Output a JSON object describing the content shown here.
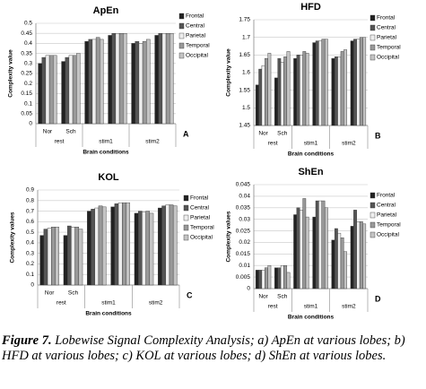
{
  "chart_data": [
    {
      "type": "bar",
      "panel": "A",
      "title": "ApEn",
      "y_label": "Complexity value",
      "x_label": "Brain conditions",
      "categories": [
        "Nor",
        "Sch",
        null,
        null,
        null,
        null
      ],
      "groups": [
        "rest",
        "stim1",
        "stim2"
      ],
      "ylim": [
        0,
        0.5
      ],
      "yticks": [
        0,
        0.05,
        0.1,
        0.15,
        0.2,
        0.25,
        0.3,
        0.35,
        0.4,
        0.45,
        0.5
      ],
      "grid": true,
      "series": [
        {
          "name": "Frontal",
          "color": "#222222",
          "values": [
            0.3,
            0.31,
            0.41,
            0.44,
            0.4,
            0.44
          ]
        },
        {
          "name": "Central",
          "color": "#555555",
          "values": [
            0.33,
            0.33,
            0.42,
            0.45,
            0.41,
            0.45
          ]
        },
        {
          "name": "Parietal",
          "color": "#eeeeee",
          "values": [
            0.34,
            0.34,
            0.42,
            0.45,
            0.4,
            0.45
          ]
        },
        {
          "name": "Temporal",
          "color": "#999999",
          "values": [
            0.34,
            0.34,
            0.43,
            0.45,
            0.41,
            0.45
          ]
        },
        {
          "name": "Occipital",
          "color": "#c4c4c4",
          "values": [
            0.34,
            0.35,
            0.42,
            0.45,
            0.42,
            0.45
          ]
        }
      ]
    },
    {
      "type": "bar",
      "panel": "B",
      "title": "HFD",
      "y_label": "Complexity value",
      "x_label": "Brain conditions",
      "categories": [
        "Nor",
        "Sch",
        null,
        null,
        null,
        null
      ],
      "groups": [
        "rest",
        "stim1",
        "stim2"
      ],
      "ylim": [
        1.45,
        1.75
      ],
      "yticks": [
        1.45,
        1.5,
        1.55,
        1.6,
        1.65,
        1.7,
        1.75
      ],
      "grid": true,
      "series": [
        {
          "name": "Frontal",
          "color": "#222222",
          "values": [
            1.565,
            1.585,
            1.64,
            1.685,
            1.64,
            1.69
          ]
        },
        {
          "name": "Central",
          "color": "#555555",
          "values": [
            1.61,
            1.64,
            1.65,
            1.69,
            1.645,
            1.695
          ]
        },
        {
          "name": "Parietal",
          "color": "#eeeeee",
          "values": [
            1.62,
            1.63,
            1.65,
            1.69,
            1.645,
            1.695
          ]
        },
        {
          "name": "Temporal",
          "color": "#999999",
          "values": [
            1.64,
            1.645,
            1.66,
            1.695,
            1.66,
            1.7
          ]
        },
        {
          "name": "Occipital",
          "color": "#c4c4c4",
          "values": [
            1.655,
            1.66,
            1.655,
            1.695,
            1.665,
            1.7
          ]
        }
      ]
    },
    {
      "type": "bar",
      "panel": "C",
      "title": "KOL",
      "y_label": "Complexity values",
      "x_label": "Brain conditions",
      "categories": [
        "Nor",
        "Sch",
        null,
        null,
        null,
        null
      ],
      "groups": [
        "rest",
        "stim1",
        "stim2"
      ],
      "ylim": [
        0,
        0.9
      ],
      "yticks": [
        0,
        0.1,
        0.2,
        0.3,
        0.4,
        0.5,
        0.6,
        0.7,
        0.8,
        0.9
      ],
      "grid": true,
      "series": [
        {
          "name": "Frontal",
          "color": "#222222",
          "values": [
            0.47,
            0.47,
            0.7,
            0.74,
            0.68,
            0.73
          ]
        },
        {
          "name": "Central",
          "color": "#555555",
          "values": [
            0.53,
            0.56,
            0.72,
            0.77,
            0.7,
            0.75
          ]
        },
        {
          "name": "Parietal",
          "color": "#eeeeee",
          "values": [
            0.54,
            0.55,
            0.73,
            0.78,
            0.69,
            0.76
          ]
        },
        {
          "name": "Temporal",
          "color": "#999999",
          "values": [
            0.55,
            0.55,
            0.75,
            0.78,
            0.7,
            0.76
          ]
        },
        {
          "name": "Occipital",
          "color": "#c4c4c4",
          "values": [
            0.55,
            0.53,
            0.74,
            0.78,
            0.68,
            0.75
          ]
        }
      ]
    },
    {
      "type": "bar",
      "panel": "D",
      "title": "ShEn",
      "y_label": "Complexity values",
      "x_label": "Brain conditions",
      "categories": [
        "Nor",
        "Sch",
        null,
        null,
        null,
        null
      ],
      "groups": [
        "rest",
        "stim1",
        "stim2"
      ],
      "ylim": [
        0,
        0.045
      ],
      "yticks": [
        0,
        0.005,
        0.01,
        0.015,
        0.02,
        0.025,
        0.03,
        0.035,
        0.04,
        0.045
      ],
      "grid": true,
      "series": [
        {
          "name": "Frontal",
          "color": "#222222",
          "values": [
            0.008,
            0.009,
            0.032,
            0.031,
            0.021,
            0.027
          ]
        },
        {
          "name": "Central",
          "color": "#555555",
          "values": [
            0.008,
            0.009,
            0.035,
            0.038,
            0.026,
            0.034
          ]
        },
        {
          "name": "Parietal",
          "color": "#eeeeee",
          "values": [
            0.008,
            0.01,
            0.034,
            0.038,
            0.024,
            0.029
          ]
        },
        {
          "name": "Temporal",
          "color": "#999999",
          "values": [
            0.009,
            0.01,
            0.039,
            0.038,
            0.022,
            0.029
          ]
        },
        {
          "name": "Occipital",
          "color": "#c4c4c4",
          "values": [
            0.01,
            0.007,
            0.031,
            0.035,
            0.016,
            0.028
          ]
        }
      ]
    }
  ],
  "caption": {
    "label": "Figure 7.",
    "text": "Lobewise Signal Complexity Analysis; a) ApEn at various lobes; b) HFD at various lobes; c) KOL at various lobes; d) ShEn at various lobes."
  }
}
